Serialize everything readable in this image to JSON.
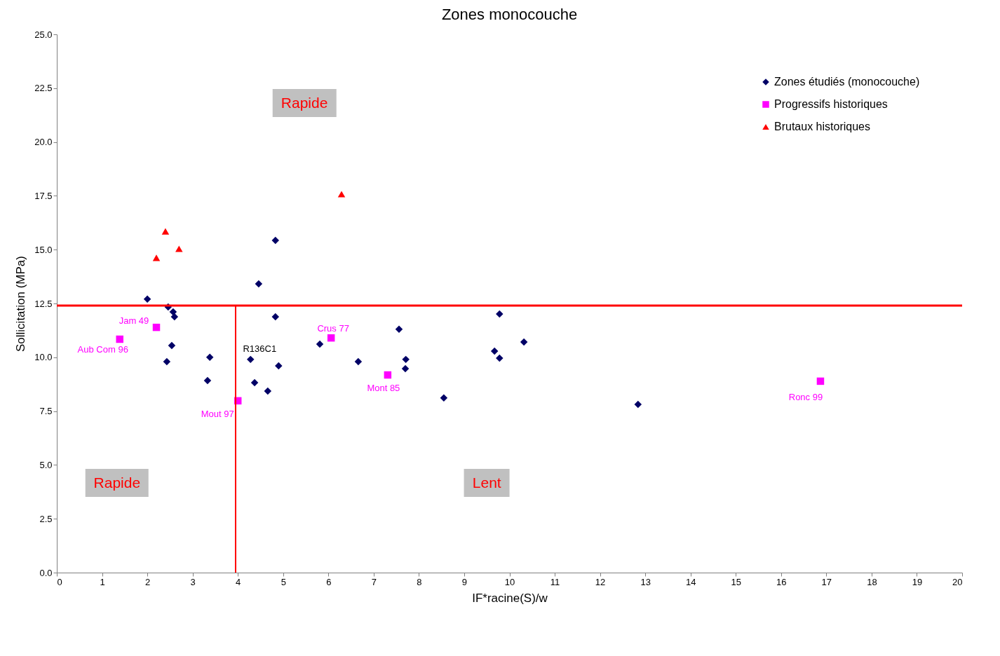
{
  "chart_data": {
    "type": "scatter",
    "title": "Zones monocouche",
    "xlabel": "IF*racine(S)/w",
    "ylabel": "Sollicitation (MPa)",
    "xlim": [
      0,
      20
    ],
    "xticks": [
      0,
      1,
      2,
      3,
      4,
      5,
      6,
      7,
      8,
      9,
      10,
      11,
      12,
      13,
      14,
      15,
      16,
      17,
      18,
      19,
      20
    ],
    "ylim": [
      0,
      25
    ],
    "yticks": [
      {
        "value": 0,
        "label": "0.0"
      },
      {
        "value": 2.5,
        "label": "2.5"
      },
      {
        "value": 5,
        "label": "5.0"
      },
      {
        "value": 7.5,
        "label": "7.5"
      },
      {
        "value": 10,
        "label": "10.0"
      },
      {
        "value": 12.5,
        "label": "12.5"
      },
      {
        "value": 15,
        "label": "15.0"
      },
      {
        "value": 17.5,
        "label": "17.5"
      },
      {
        "value": 20,
        "label": "20.0"
      },
      {
        "value": 22.5,
        "label": "22.5"
      },
      {
        "value": 25,
        "label": "25.0"
      }
    ],
    "grid": false,
    "legend": "top right",
    "series": [
      {
        "name": "Zones étudiés (monocouche)",
        "color": "#000066",
        "marker": "diamond",
        "x": [
          2.0,
          2.46,
          2.57,
          2.6,
          2.54,
          2.43,
          3.38,
          3.33,
          4.28,
          4.37,
          4.66,
          4.46,
          4.83,
          4.83,
          4.9,
          5.81,
          6.66,
          7.56,
          7.71,
          7.7,
          8.55,
          9.78,
          9.67,
          9.78,
          10.32,
          12.84
        ],
        "values": [
          12.7,
          12.34,
          12.11,
          11.88,
          10.55,
          9.8,
          10.0,
          8.92,
          9.9,
          8.82,
          8.43,
          13.41,
          15.43,
          11.88,
          9.6,
          10.61,
          9.8,
          11.3,
          9.9,
          9.47,
          8.11,
          12.01,
          10.29,
          9.96,
          10.71,
          7.81
        ]
      },
      {
        "name": "Progressifs historiques",
        "color": "#ff00ff",
        "marker": "square",
        "x": [
          1.39,
          2.2,
          4.0,
          6.06,
          7.31,
          16.87
        ],
        "values": [
          10.84,
          11.39,
          7.98,
          10.9,
          9.18,
          8.89
        ]
      },
      {
        "name": "Brutaux historiques",
        "color": "#ff0000",
        "marker": "triangle",
        "x": [
          2.2,
          2.4,
          2.7,
          6.29
        ],
        "values": [
          14.62,
          15.85,
          15.04,
          17.58
        ]
      },
      {
        "type": "line",
        "color": "#ff0000",
        "marker": "none",
        "x": [
          3.95,
          3.95
        ],
        "values": [
          0,
          12.4
        ]
      }
    ],
    "ref_lines": [
      {
        "axis": "y",
        "value": 12.4,
        "color": "#ff0000"
      }
    ],
    "annotations": [
      "Rapide",
      "Rapide",
      "Lent",
      {
        "text": "Aub Com 96",
        "x": 1.39,
        "y": 10.84
      },
      {
        "text": "Jam 49",
        "x": 2.2,
        "y": 11.39
      },
      {
        "text": "Mout 97",
        "x": 4.0,
        "y": 7.98
      },
      {
        "text": "Crus 77",
        "x": 6.06,
        "y": 10.9
      },
      {
        "text": "Mont 85",
        "x": 7.31,
        "y": 9.18
      },
      {
        "text": "Ronc 99",
        "x": 16.87,
        "y": 8.89
      },
      {
        "text": "R136C1",
        "x": 4.28,
        "y": 9.9
      }
    ]
  }
}
